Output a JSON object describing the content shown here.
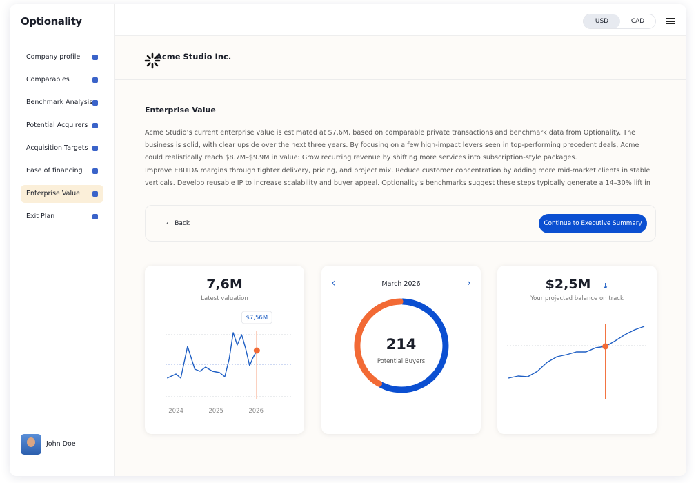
{
  "sidebar": {
    "logo": "Optionality",
    "menu": [
      "Company profile",
      "Comparables",
      "Benchmark Analysis",
      "Potential Acquirers",
      "Acquisition Targets",
      "Ease of financing",
      "Enterprise Value",
      "Exit Plan"
    ],
    "user": "John Doe"
  },
  "header": {
    "currencies": [
      "USD",
      "CAD"
    ]
  },
  "company": "Acme Studio Inc.",
  "section": {
    "title": "Enterprise Value",
    "paragraphs": [
      "Acme Studio’s current enterprise value is estimated at $7.6M, based on comparable private transactions and benchmark data from Optionality. The business is solid, with clear upside over the next three years. By focusing on a few high-impact levers seen in top-performing precedent deals, Acme could realistically reach $8.7M–$9.9M in value:  Grow recurring revenue by shifting more services into subscription-style packages.",
      "Improve EBITDA margins through tighter delivery, pricing, and project mix. Reduce customer concentration by adding more mid-market clients in stable verticals. Develop reusable IP to increase scalability and buyer appeal. Optionality’s benchmarks suggest these steps typically generate a 14–30% lift in"
    ]
  },
  "actions": {
    "back": "Back",
    "continue": "Continue to Executive Summary"
  },
  "cards": [
    {
      "type": "line",
      "value": "7,6M",
      "label": "Latest valuation",
      "tooltip": "$7,56M",
      "x": [
        2023.78,
        2024,
        2024.12,
        2024.29,
        2024.47,
        2024.6,
        2024.74,
        2024.91,
        2025.09,
        2025.22,
        2025.33,
        2025.43,
        2025.53,
        2025.64,
        2025.74,
        2025.84,
        2025.91,
        2026.02
      ],
      "values": [
        32,
        38,
        32,
        78,
        45,
        42,
        48,
        42,
        40,
        34,
        60,
        98,
        80,
        95,
        75,
        50,
        60,
        72
      ],
      "xlim": [
        2023.74,
        2026.91
      ],
      "xticks": [
        2024,
        2025,
        2026
      ],
      "ylim": [
        0,
        110
      ],
      "yticks": [
        5,
        52,
        95
      ],
      "highlight": 17,
      "color": "#1f5fc4"
    },
    {
      "type": "pie",
      "month": "March 2026",
      "value": 214,
      "label": "Potential Buyers",
      "values": [
        58,
        42
      ],
      "colors": [
        "#0b4fd1",
        "#f26a35"
      ]
    },
    {
      "type": "line",
      "value": "$2,5M",
      "label": "Your projected balance on track",
      "values": [
        32,
        35,
        34,
        42,
        55,
        63,
        66,
        70,
        70,
        76,
        78,
        86,
        95,
        102,
        107
      ],
      "ylim": [
        0,
        110
      ],
      "yticks": [
        79
      ],
      "highlight": 10,
      "color": "#1f5fc4"
    }
  ]
}
